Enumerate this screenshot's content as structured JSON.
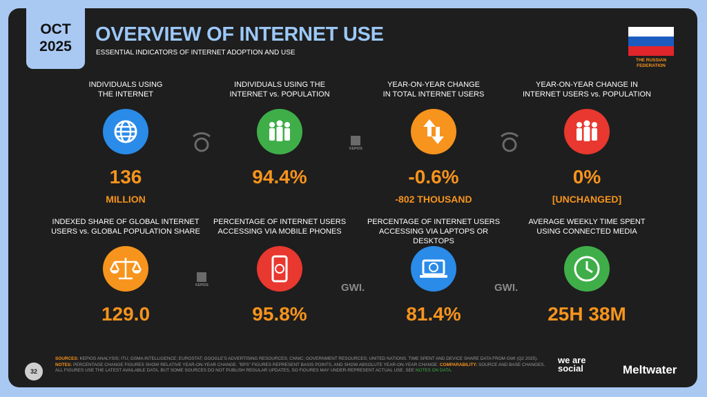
{
  "header": {
    "month": "OCT",
    "year": "2025",
    "title": "OVERVIEW OF INTERNET USE",
    "subtitle": "ESSENTIAL INDICATORS OF INTERNET ADOPTION AND USE",
    "country": "THE RUSSIAN FEDERATION"
  },
  "tiles": [
    {
      "label": [
        "INDIVIDUALS USING",
        "THE INTERNET"
      ],
      "value": "136",
      "sub": "MILLION",
      "color": "#2a8be8"
    },
    {
      "label": [
        "INDIVIDUALS USING THE",
        "INTERNET vs. POPULATION"
      ],
      "value": "94.4%",
      "color": "#3fae49"
    },
    {
      "label": [
        "YEAR-ON-YEAR CHANGE",
        "IN TOTAL INTERNET USERS"
      ],
      "value": "-0.6%",
      "sub": "-802 THOUSAND",
      "color": "#f7941d"
    },
    {
      "label": [
        "YEAR-ON-YEAR CHANGE IN",
        "INTERNET USERS vs. POPULATION"
      ],
      "value": "0%",
      "sub": "[UNCHANGED]",
      "color": "#e8382f"
    },
    {
      "label": [
        "INDEXED SHARE OF GLOBAL INTERNET",
        "USERS vs. GLOBAL POPULATION SHARE"
      ],
      "value": "129.0",
      "color": "#f7941d"
    },
    {
      "label": [
        "PERCENTAGE OF INTERNET USERS",
        "ACCESSING VIA MOBILE PHONES"
      ],
      "value": "95.8%",
      "color": "#e8382f"
    },
    {
      "label": [
        "PERCENTAGE OF INTERNET USERS",
        "ACCESSING VIA LAPTOPS OR DESKTOPS"
      ],
      "value": "81.4%",
      "color": "#2a8be8"
    },
    {
      "label": [
        "AVERAGE WEEKLY TIME SPENT",
        "USING CONNECTED MEDIA"
      ],
      "value": "25H 38M",
      "color": "#3fae49"
    }
  ],
  "partners": [
    "KEPIOS",
    "KEPIOS",
    "GWI.",
    "GWI."
  ],
  "footer": {
    "sources_label": "SOURCES:",
    "sources": "KEPIOS ANALYSIS; ITU; GSMA INTELLIGENCE; EUROSTAT; GOOGLE'S ADVERTISING RESOURCES; CNNIC; GOVERNMENT RESOURCES; UNITED NATIONS. TIME SPENT AND DEVICE SHARE DATA FROM GWI (Q2 2025).",
    "notes_label": "NOTES:",
    "notes": "PERCENTAGE CHANGE FIGURES SHOW RELATIVE YEAR-ON-YEAR CHANGE. \"BPS\" FIGURES REPRESENT BASIS POINTS, AND SHOW ABSOLUTE YEAR-ON-YEAR CHANGE.",
    "comparability_label": "COMPARABILITY:",
    "comparability": "SOURCE AND BASE CHANGES. ALL FIGURES USE THE LATEST AVAILABLE DATA, BUT SOME SOURCES DO NOT PUBLISH REGULAR UPDATES, SO FIGURES MAY UNDER-REPRESENT ACTUAL USE. SEE",
    "notes_link": "NOTES ON DATA.",
    "page": "32",
    "brand1": "we are social",
    "brand2": "Meltwater"
  }
}
